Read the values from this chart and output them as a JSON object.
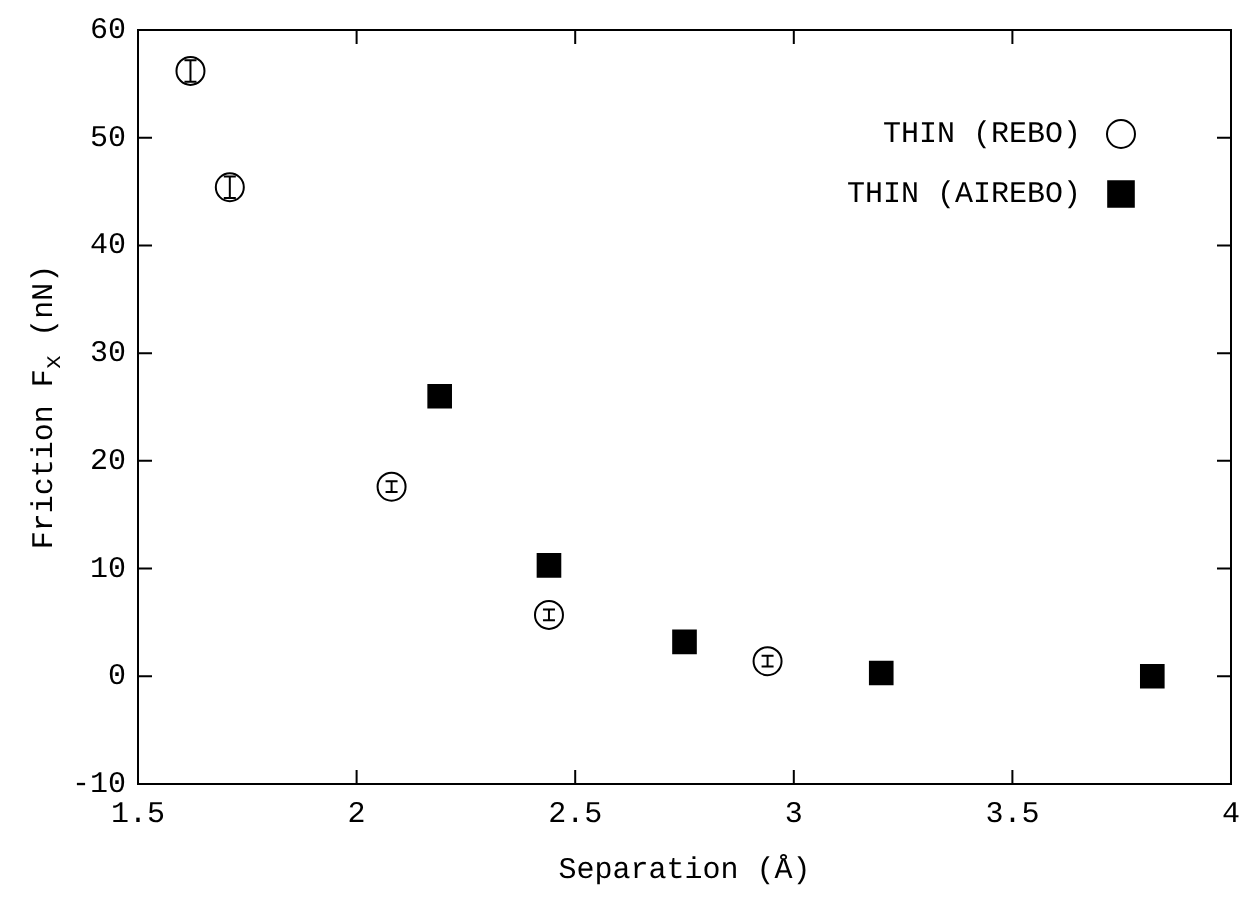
{
  "chart_data": {
    "type": "scatter",
    "xlabel": "Separation (Å)",
    "ylabel": "Friction F$_{x}$ (nN)",
    "xlim": [
      1.5,
      4
    ],
    "xticks": [
      1.5,
      2,
      2.5,
      3,
      3.5,
      4
    ],
    "ylim": [
      -10,
      60
    ],
    "yticks": [
      -10,
      0,
      10,
      20,
      30,
      40,
      50,
      60
    ],
    "grid": false,
    "legend": "top right",
    "series": [
      {
        "name": "THIN (REBO)",
        "color": "#000000",
        "marker": "circle",
        "x": [
          1.62,
          1.71,
          2.08,
          2.44,
          2.94
        ],
        "values": [
          56.2,
          45.4,
          17.6,
          5.7,
          1.4
        ],
        "errors": [
          1,
          1,
          0.5,
          0.5,
          0.5
        ]
      },
      {
        "name": "THIN (AIREBO)",
        "color": "#000000",
        "marker": "square",
        "x": [
          2.19,
          2.44,
          2.75,
          3.2,
          3.82
        ],
        "values": [
          26,
          10.3,
          3.2,
          0.3,
          0
        ]
      }
    ]
  }
}
